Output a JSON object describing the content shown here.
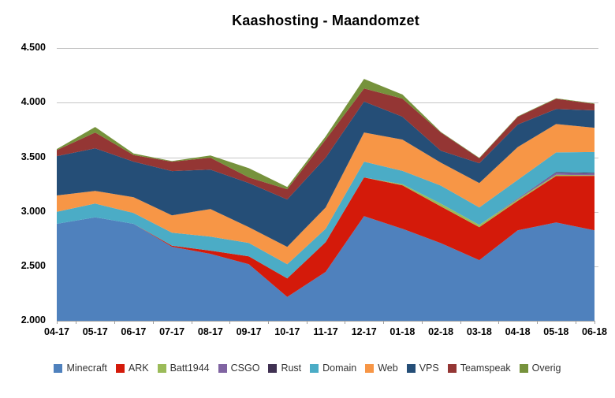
{
  "chart_title": "Kaashosting - Maandomzet",
  "chart_data": {
    "type": "area-stacked",
    "title": "Kaashosting - Maandomzet",
    "categories": [
      "04-17",
      "05-17",
      "06-17",
      "07-17",
      "08-17",
      "09-17",
      "10-17",
      "11-17",
      "12-17",
      "01-18",
      "02-18",
      "03-18",
      "04-18",
      "05-18",
      "06-18"
    ],
    "series": [
      {
        "name": "Minecraft",
        "color": "#4F81BD",
        "values": [
          2890,
          2950,
          2890,
          2680,
          2615,
          2520,
          2220,
          2450,
          2960,
          2845,
          2713,
          2557,
          2830,
          2903,
          2830
        ]
      },
      {
        "name": "ARK",
        "color": "#D41A0A",
        "values": [
          0,
          0,
          0,
          10,
          30,
          73,
          170,
          273,
          355,
          398,
          337,
          303,
          270,
          426,
          500
        ]
      },
      {
        "name": "Batt1944",
        "color": "#9BBB59",
        "values": [
          0,
          0,
          0,
          0,
          0,
          0,
          0,
          0,
          0,
          10,
          25,
          20,
          15,
          10,
          5
        ]
      },
      {
        "name": "CSGO",
        "color": "#8064A2",
        "values": [
          0,
          0,
          0,
          0,
          0,
          0,
          0,
          0,
          0,
          0,
          0,
          0,
          8,
          20,
          15
        ]
      },
      {
        "name": "Rust",
        "color": "#403152",
        "values": [
          0,
          0,
          0,
          0,
          0,
          0,
          0,
          0,
          0,
          0,
          0,
          0,
          0,
          5,
          8
        ]
      },
      {
        "name": "Domain",
        "color": "#4BACC6",
        "values": [
          110,
          126,
          100,
          119,
          128,
          122,
          130,
          122,
          145,
          122,
          165,
          160,
          170,
          180,
          190
        ]
      },
      {
        "name": "Web",
        "color": "#F79646",
        "values": [
          150,
          116,
          144,
          159,
          253,
          145,
          159,
          195,
          267,
          287,
          210,
          224,
          300,
          260,
          222
        ]
      },
      {
        "name": "VPS",
        "color": "#254E77",
        "values": [
          360,
          390,
          326,
          405,
          361,
          404,
          434,
          456,
          283,
          209,
          110,
          181,
          207,
          137,
          160
        ]
      },
      {
        "name": "Teamspeak",
        "color": "#943634",
        "values": [
          55,
          145,
          60,
          87,
          109,
          51,
          94,
          166,
          120,
          166,
          167,
          45,
          70,
          94,
          58
        ]
      },
      {
        "name": "Overig",
        "color": "#76923C",
        "values": [
          10,
          50,
          15,
          5,
          20,
          85,
          21,
          29,
          88,
          38,
          5,
          5,
          5,
          5,
          5
        ]
      }
    ],
    "ylim": [
      2000,
      4500
    ],
    "y_tick_labels": [
      "2.000",
      "2.500",
      "3.000",
      "3.500",
      "4.000",
      "4.500"
    ],
    "xlabel": "",
    "ylabel": "",
    "grid": true,
    "legend_position": "bottom"
  }
}
